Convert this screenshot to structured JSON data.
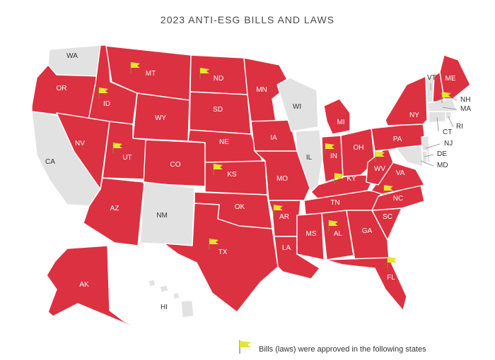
{
  "title": "2023 ANTI-ESG BILLS AND LAWS",
  "colors": {
    "bill_state": "#dc3140",
    "no_bill_state": "#e2e2e2",
    "flag": "#e5e52b",
    "title": "#4a4a4a"
  },
  "legend": {
    "icon": "flag-icon",
    "text": "Bills (laws) were approved in the following states"
  },
  "states": [
    {
      "abbr": "WA",
      "status": "none"
    },
    {
      "abbr": "OR",
      "status": "bill"
    },
    {
      "abbr": "CA",
      "status": "none"
    },
    {
      "abbr": "ID",
      "status": "law"
    },
    {
      "abbr": "NV",
      "status": "bill"
    },
    {
      "abbr": "MT",
      "status": "law"
    },
    {
      "abbr": "WY",
      "status": "bill"
    },
    {
      "abbr": "UT",
      "status": "law"
    },
    {
      "abbr": "AZ",
      "status": "bill"
    },
    {
      "abbr": "CO",
      "status": "bill"
    },
    {
      "abbr": "NM",
      "status": "none"
    },
    {
      "abbr": "ND",
      "status": "law"
    },
    {
      "abbr": "SD",
      "status": "bill"
    },
    {
      "abbr": "NE",
      "status": "bill"
    },
    {
      "abbr": "KS",
      "status": "law"
    },
    {
      "abbr": "OK",
      "status": "bill"
    },
    {
      "abbr": "TX",
      "status": "law"
    },
    {
      "abbr": "MN",
      "status": "bill"
    },
    {
      "abbr": "IA",
      "status": "bill"
    },
    {
      "abbr": "MO",
      "status": "bill"
    },
    {
      "abbr": "AR",
      "status": "law"
    },
    {
      "abbr": "LA",
      "status": "bill"
    },
    {
      "abbr": "WI",
      "status": "none"
    },
    {
      "abbr": "IL",
      "status": "none"
    },
    {
      "abbr": "MI",
      "status": "bill"
    },
    {
      "abbr": "IN",
      "status": "law"
    },
    {
      "abbr": "OH",
      "status": "bill"
    },
    {
      "abbr": "KY",
      "status": "law"
    },
    {
      "abbr": "TN",
      "status": "bill"
    },
    {
      "abbr": "MS",
      "status": "bill"
    },
    {
      "abbr": "AL",
      "status": "law"
    },
    {
      "abbr": "GA",
      "status": "bill"
    },
    {
      "abbr": "FL",
      "status": "law"
    },
    {
      "abbr": "SC",
      "status": "bill"
    },
    {
      "abbr": "NC",
      "status": "law"
    },
    {
      "abbr": "VA",
      "status": "bill"
    },
    {
      "abbr": "WV",
      "status": "law"
    },
    {
      "abbr": "PA",
      "status": "bill"
    },
    {
      "abbr": "NY",
      "status": "bill"
    },
    {
      "abbr": "VT",
      "status": "none"
    },
    {
      "abbr": "NH",
      "status": "law"
    },
    {
      "abbr": "ME",
      "status": "bill"
    },
    {
      "abbr": "MA",
      "status": "none"
    },
    {
      "abbr": "RI",
      "status": "none"
    },
    {
      "abbr": "CT",
      "status": "none"
    },
    {
      "abbr": "NJ",
      "status": "none"
    },
    {
      "abbr": "DE",
      "status": "none"
    },
    {
      "abbr": "MD",
      "status": "none"
    },
    {
      "abbr": "AK",
      "status": "bill"
    },
    {
      "abbr": "HI",
      "status": "none"
    }
  ]
}
